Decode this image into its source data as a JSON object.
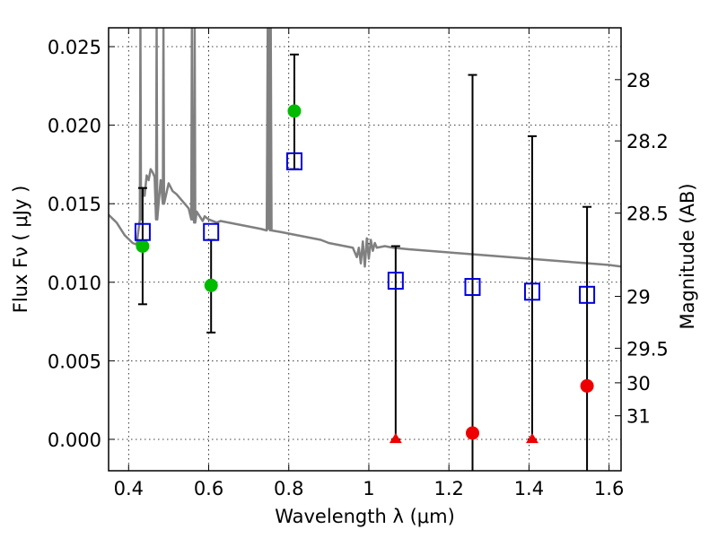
{
  "chart_data": {
    "type": "scatter",
    "xlabel": "Wavelength  λ (μm)",
    "ylabel": "Flux  Fν  ( μJy )",
    "ylabel_right": "Magnitude (AB)",
    "xlim": [
      0.35,
      1.63
    ],
    "ylim": [
      -0.002,
      0.0262
    ],
    "grid": true,
    "x_ticks": [
      0.4,
      0.6,
      0.8,
      1.0,
      1.2,
      1.4,
      1.6
    ],
    "x_tick_labels": [
      "0.4",
      "0.6",
      "0.8",
      "1",
      "1.2",
      "1.4",
      "1.6"
    ],
    "y_ticks": [
      0.0,
      0.005,
      0.01,
      0.015,
      0.02,
      0.025
    ],
    "y_tick_labels": [
      "0.000",
      "0.005",
      "0.010",
      "0.015",
      "0.020",
      "0.025"
    ],
    "right_ticks": [
      {
        "label": "28",
        "flux": 0.0229
      },
      {
        "label": "28.2",
        "flux": 0.019
      },
      {
        "label": "28.5",
        "flux": 0.0144
      },
      {
        "label": "29",
        "flux": 0.0091
      },
      {
        "label": "29.5",
        "flux": 0.0058
      },
      {
        "label": "30",
        "flux": 0.0036
      },
      {
        "label": "31",
        "flux": 0.0015
      }
    ],
    "observed": [
      {
        "x": 0.435,
        "y": 0.0123,
        "err_low": 0.0086,
        "err_high": 0.016,
        "color": "#00bb00",
        "marker": "circle"
      },
      {
        "x": 0.606,
        "y": 0.0098,
        "err_low": 0.0068,
        "err_high": 0.0127,
        "color": "#00bb00",
        "marker": "circle"
      },
      {
        "x": 0.814,
        "y": 0.0209,
        "err_low": 0.0172,
        "err_high": 0.0245,
        "color": "#00bb00",
        "marker": "circle"
      },
      {
        "x": 1.067,
        "y": 0.0,
        "err_low": 0.0,
        "err_high": 0.0123,
        "color": "#ee0000",
        "marker": "triangle"
      },
      {
        "x": 1.259,
        "y": 0.0004,
        "err_low": -0.002,
        "err_high": 0.0232,
        "color": "#ee0000",
        "marker": "circle"
      },
      {
        "x": 1.408,
        "y": 0.0,
        "err_low": 0.0,
        "err_high": 0.0193,
        "color": "#ee0000",
        "marker": "triangle"
      },
      {
        "x": 1.545,
        "y": 0.0034,
        "err_low": -0.002,
        "err_high": 0.0148,
        "color": "#ee0000",
        "marker": "circle"
      }
    ],
    "model_photometry": [
      {
        "x": 0.435,
        "y": 0.0132
      },
      {
        "x": 0.606,
        "y": 0.0132
      },
      {
        "x": 0.814,
        "y": 0.0177
      },
      {
        "x": 1.067,
        "y": 0.0101
      },
      {
        "x": 1.259,
        "y": 0.0097
      },
      {
        "x": 1.408,
        "y": 0.0094
      },
      {
        "x": 1.545,
        "y": 0.0092
      }
    ],
    "model_spectrum": [
      [
        0.35,
        0.0143
      ],
      [
        0.37,
        0.0138
      ],
      [
        0.39,
        0.013
      ],
      [
        0.41,
        0.0125
      ],
      [
        0.42,
        0.0124
      ],
      [
        0.428,
        0.014
      ],
      [
        0.4295,
        0.0262
      ],
      [
        0.431,
        0.014
      ],
      [
        0.435,
        0.016
      ],
      [
        0.44,
        0.0155
      ],
      [
        0.445,
        0.0168
      ],
      [
        0.45,
        0.0165
      ],
      [
        0.455,
        0.0172
      ],
      [
        0.46,
        0.017
      ],
      [
        0.465,
        0.0167
      ],
      [
        0.4685,
        0.014
      ],
      [
        0.47,
        0.0262
      ],
      [
        0.4715,
        0.014
      ],
      [
        0.48,
        0.0165
      ],
      [
        0.4855,
        0.015
      ],
      [
        0.487,
        0.0262
      ],
      [
        0.4885,
        0.015
      ],
      [
        0.5,
        0.0163
      ],
      [
        0.51,
        0.0158
      ],
      [
        0.52,
        0.0156
      ],
      [
        0.53,
        0.0153
      ],
      [
        0.54,
        0.015
      ],
      [
        0.55,
        0.0147
      ],
      [
        0.5565,
        0.014
      ],
      [
        0.558,
        0.0262
      ],
      [
        0.5595,
        0.014
      ],
      [
        0.562,
        0.0143
      ],
      [
        0.5635,
        0.0138
      ],
      [
        0.565,
        0.0262
      ],
      [
        0.5665,
        0.0138
      ],
      [
        0.57,
        0.0145
      ],
      [
        0.575,
        0.0143
      ],
      [
        0.58,
        0.0141
      ],
      [
        0.585,
        0.0139
      ],
      [
        0.59,
        0.0142
      ],
      [
        0.6,
        0.014
      ],
      [
        0.61,
        0.0139
      ],
      [
        0.62,
        0.0138
      ],
      [
        0.63,
        0.0139
      ],
      [
        0.65,
        0.0138
      ],
      [
        0.67,
        0.0137
      ],
      [
        0.69,
        0.0136
      ],
      [
        0.71,
        0.0135
      ],
      [
        0.73,
        0.0134
      ],
      [
        0.745,
        0.0133
      ],
      [
        0.7475,
        0.0262
      ],
      [
        0.7495,
        0.0134
      ],
      [
        0.7515,
        0.0262
      ],
      [
        0.7535,
        0.0133
      ],
      [
        0.755,
        0.0262
      ],
      [
        0.757,
        0.0133
      ],
      [
        0.78,
        0.0132
      ],
      [
        0.8,
        0.0131
      ],
      [
        0.82,
        0.013
      ],
      [
        0.84,
        0.0129
      ],
      [
        0.86,
        0.0128
      ],
      [
        0.88,
        0.0127
      ],
      [
        0.9,
        0.0125
      ],
      [
        0.92,
        0.0124
      ],
      [
        0.94,
        0.0123
      ],
      [
        0.96,
        0.0122
      ],
      [
        0.97,
        0.0116
      ],
      [
        0.975,
        0.0122
      ],
      [
        0.98,
        0.0112
      ],
      [
        0.985,
        0.0126
      ],
      [
        0.99,
        0.011
      ],
      [
        0.995,
        0.0128
      ],
      [
        1.0,
        0.0115
      ],
      [
        1.005,
        0.0127
      ],
      [
        1.01,
        0.012
      ],
      [
        1.015,
        0.0125
      ],
      [
        1.02,
        0.0122
      ],
      [
        1.04,
        0.0123
      ],
      [
        1.06,
        0.0122
      ],
      [
        1.1,
        0.0121
      ],
      [
        1.15,
        0.012
      ],
      [
        1.2,
        0.0119
      ],
      [
        1.25,
        0.0118
      ],
      [
        1.3,
        0.0117
      ],
      [
        1.35,
        0.0116
      ],
      [
        1.4,
        0.0115
      ],
      [
        1.45,
        0.0114
      ],
      [
        1.5,
        0.0113
      ],
      [
        1.55,
        0.0112
      ],
      [
        1.6,
        0.0111
      ],
      [
        1.63,
        0.011
      ]
    ],
    "colors": {
      "spectrum": "#808080",
      "model_box": "#0000dd",
      "errorbar": "#000000",
      "grid": "#000000"
    }
  }
}
